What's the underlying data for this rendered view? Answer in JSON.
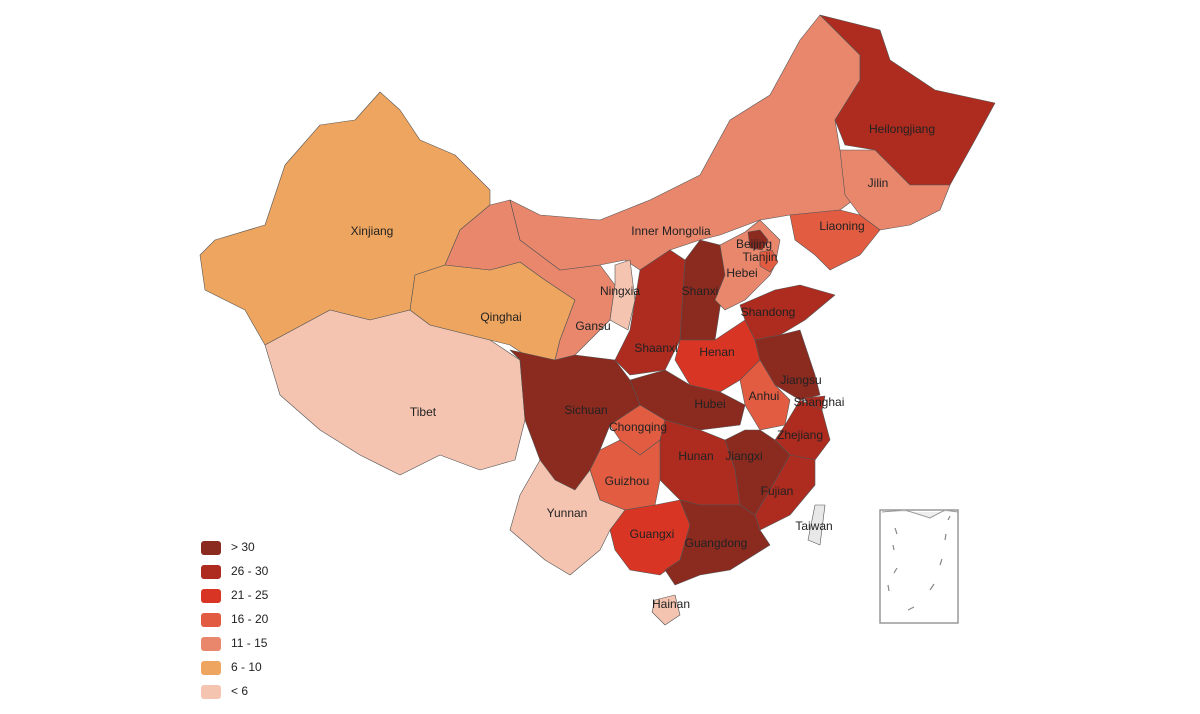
{
  "regions": [
    {
      "name": "Xinjiang",
      "color": "#eea55f"
    },
    {
      "name": "Tibet",
      "color": "#f4c4b1"
    },
    {
      "name": "Qinghai",
      "color": "#eea55f"
    },
    {
      "name": "Gansu",
      "color": "#e9876d"
    },
    {
      "name": "Inner Mongolia",
      "color": "#e9876d"
    },
    {
      "name": "Heilongjiang",
      "color": "#ad2b1f"
    },
    {
      "name": "Jilin",
      "color": "#e9876d"
    },
    {
      "name": "Liaoning",
      "color": "#e25c42"
    },
    {
      "name": "Ningxia",
      "color": "#f4c4b1"
    },
    {
      "name": "Shaanxi",
      "color": "#ad2b1f"
    },
    {
      "name": "Shanxi",
      "color": "#8b2a1f"
    },
    {
      "name": "Hebei",
      "color": "#e9876d"
    },
    {
      "name": "Beijing",
      "color": "#8b2a1f"
    },
    {
      "name": "Tianjin",
      "color": "#e25c42"
    },
    {
      "name": "Shandong",
      "color": "#ad2b1f"
    },
    {
      "name": "Henan",
      "color": "#d93524"
    },
    {
      "name": "Jiangsu",
      "color": "#8b2a1f"
    },
    {
      "name": "Shanghai",
      "color": "#ad2b1f"
    },
    {
      "name": "Anhui",
      "color": "#e25c42"
    },
    {
      "name": "Hubei",
      "color": "#8b2a1f"
    },
    {
      "name": "Chongqing",
      "color": "#e25c42"
    },
    {
      "name": "Sichuan",
      "color": "#8b2a1f"
    },
    {
      "name": "Zhejiang",
      "color": "#ad2b1f"
    },
    {
      "name": "Jiangxi",
      "color": "#8b2a1f"
    },
    {
      "name": "Fujian",
      "color": "#ad2b1f"
    },
    {
      "name": "Hunan",
      "color": "#ad2b1f"
    },
    {
      "name": "Guizhou",
      "color": "#e25c42"
    },
    {
      "name": "Yunnan",
      "color": "#f4c4b1"
    },
    {
      "name": "Guangxi",
      "color": "#d93524"
    },
    {
      "name": "Guangdong",
      "color": "#8b2a1f"
    },
    {
      "name": "Hainan",
      "color": "#f4c4b1"
    },
    {
      "name": "Taiwan",
      "color": "#e8e8e8"
    }
  ],
  "legend": [
    {
      "label": "> 30",
      "color": "#8b2a1f"
    },
    {
      "label": "26 - 30",
      "color": "#ad2b1f"
    },
    {
      "label": "21 - 25",
      "color": "#d93524"
    },
    {
      "label": "16 - 20",
      "color": "#e25c42"
    },
    {
      "label": "11 - 15",
      "color": "#e9876d"
    },
    {
      "label": "6 - 10",
      "color": "#eea55f"
    },
    {
      "label": "< 6",
      "color": "#f4c4b1"
    }
  ]
}
